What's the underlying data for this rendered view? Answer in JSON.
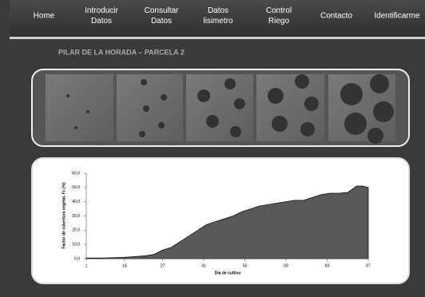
{
  "nav": [
    [
      "Home"
    ],
    [
      "Introducir",
      "Datos"
    ],
    [
      "Consultar",
      "Datos"
    ],
    [
      "Datos",
      "lisimetro"
    ],
    [
      "Control",
      "Riego"
    ],
    [
      "Contacto"
    ],
    [
      "Identificarme"
    ]
  ],
  "page_title": "PILAR DE LA HORADA – PARCELA 2",
  "chart_data": {
    "type": "area",
    "x_label": "Día de cultivo",
    "y_label": "Factor de cobertura vegetal, Fc (%)",
    "x": [
      1,
      7,
      14,
      18,
      21,
      24,
      27,
      30,
      33,
      36,
      39,
      42,
      45,
      48,
      51,
      54,
      57,
      60,
      63,
      66,
      69,
      72,
      75,
      78,
      81,
      84,
      87,
      90,
      93,
      95,
      97
    ],
    "values": [
      0.5,
      0.5,
      1,
      1.5,
      2,
      3,
      6,
      8,
      12,
      16,
      20,
      24,
      26,
      28,
      30,
      33,
      35,
      37,
      38,
      39,
      40,
      41,
      41,
      43,
      45,
      46,
      46,
      46.5,
      51,
      51,
      50
    ],
    "color": "#595959",
    "xlim": [
      1,
      97
    ],
    "xticks": [
      1,
      14,
      27,
      41,
      55,
      69,
      83,
      97
    ],
    "ylim": [
      0,
      60
    ],
    "yticks": [
      {
        "value": 0,
        "label": "0,0"
      },
      {
        "value": 10,
        "label": "10,0"
      },
      {
        "value": 20,
        "label": "20,0"
      },
      {
        "value": 30,
        "label": "30,0"
      },
      {
        "value": 40,
        "label": "40,0"
      },
      {
        "value": 50,
        "label": "50,0"
      },
      {
        "value": 60,
        "label": "60,0"
      }
    ]
  }
}
